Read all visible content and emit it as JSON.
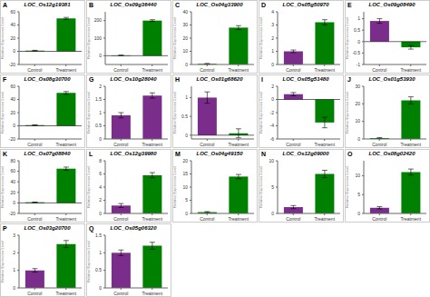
{
  "chart_data": [
    {
      "type": "bar",
      "title": "LOC_Os12g19381",
      "annotations": [
        "A"
      ],
      "categories": [
        "Control",
        "Treatment"
      ],
      "values": [
        1,
        50
      ],
      "errors": [
        0.5,
        1.5
      ],
      "colors": [
        "#008000",
        "#008000"
      ],
      "ylabel": "Relative Expression Level",
      "ylim": [
        -20,
        60
      ],
      "yticks": [
        -20,
        0,
        20,
        40,
        60
      ],
      "grid": false
    },
    {
      "type": "bar",
      "title": "LOC_Os09g36440",
      "annotations": [
        "B"
      ],
      "categories": [
        "Control",
        "Treatment"
      ],
      "values": [
        2,
        200
      ],
      "errors": [
        1,
        5
      ],
      "colors": [
        "#008000",
        "#008000"
      ],
      "ylabel": "Relative Expression Level",
      "ylim": [
        -50,
        250
      ],
      "yticks": [
        0,
        100,
        200
      ],
      "grid": false
    },
    {
      "type": "bar",
      "title": "LOC_Os04g33900",
      "annotations": [
        "C"
      ],
      "categories": [
        "Control",
        "Treatment"
      ],
      "values": [
        0.5,
        28
      ],
      "errors": [
        0.3,
        1.5
      ],
      "colors": [
        "#008000",
        "#008000"
      ],
      "ylabel": "Relative Expression Level",
      "ylim": [
        0,
        40
      ],
      "yticks": [
        0,
        10,
        20,
        30,
        40
      ],
      "grid": false
    },
    {
      "type": "bar",
      "title": "LOC_Os05g50970",
      "annotations": [
        "D"
      ],
      "categories": [
        "Control",
        "Treatment"
      ],
      "values": [
        1.0,
        3.2
      ],
      "errors": [
        0.1,
        0.2
      ],
      "colors": [
        "#7b2d8b",
        "#008000"
      ],
      "ylabel": "Relative Expression Level",
      "ylim": [
        0,
        4
      ],
      "yticks": [
        0,
        1,
        2,
        3,
        4
      ],
      "grid": false
    },
    {
      "type": "bar",
      "title": "LOC_Os09g08490",
      "annotations": [
        "E"
      ],
      "categories": [
        "Control",
        "Treatment"
      ],
      "values": [
        0.9,
        -0.25
      ],
      "errors": [
        0.1,
        0.08
      ],
      "colors": [
        "#7b2d8b",
        "#008000"
      ],
      "ylabel": "Relative Expression Level",
      "ylim": [
        -1,
        1.3
      ],
      "yticks": [
        -1,
        -0.5,
        0,
        0.5,
        1
      ],
      "grid": false
    },
    {
      "type": "bar",
      "title": "LOC_Os08g30700",
      "annotations": [
        "F"
      ],
      "categories": [
        "Control",
        "Treatment"
      ],
      "values": [
        1,
        50
      ],
      "errors": [
        0.5,
        2
      ],
      "colors": [
        "#008000",
        "#008000"
      ],
      "ylabel": "Relative Expression Level",
      "ylim": [
        -20,
        60
      ],
      "yticks": [
        -20,
        0,
        20,
        40,
        60
      ],
      "grid": false
    },
    {
      "type": "bar",
      "title": "LOC_Os10g28040",
      "annotations": [
        "G"
      ],
      "categories": [
        "Control",
        "Treatment"
      ],
      "values": [
        0.9,
        1.65
      ],
      "errors": [
        0.1,
        0.1
      ],
      "colors": [
        "#7b2d8b",
        "#7b2d8b"
      ],
      "ylabel": "Relative Expression Level",
      "ylim": [
        0,
        2
      ],
      "yticks": [
        0,
        0.5,
        1,
        1.5,
        2
      ],
      "grid": false
    },
    {
      "type": "bar",
      "title": "LOC_Os01g68620",
      "annotations": [
        "H"
      ],
      "categories": [
        "Control",
        "Treatment"
      ],
      "values": [
        1.0,
        0.05
      ],
      "errors": [
        0.15,
        0.12
      ],
      "colors": [
        "#7b2d8b",
        "#008000"
      ],
      "ylabel": "Relative Expression Level",
      "ylim": [
        -0.1,
        1.3
      ],
      "yticks": [
        0,
        0.5,
        1
      ],
      "grid": false
    },
    {
      "type": "bar",
      "title": "LOC_Os05g51480",
      "annotations": [
        "I"
      ],
      "categories": [
        "Control",
        "Treatment"
      ],
      "values": [
        0.8,
        -3.5
      ],
      "errors": [
        0.25,
        0.8
      ],
      "colors": [
        "#7b2d8b",
        "#008000"
      ],
      "ylabel": "Relative Expression Level",
      "ylim": [
        -6,
        2
      ],
      "yticks": [
        -6,
        -4,
        -2,
        0,
        2
      ],
      "grid": false
    },
    {
      "type": "bar",
      "title": "LOC_Os01g53930",
      "annotations": [
        "J"
      ],
      "categories": [
        "Control",
        "Treatment"
      ],
      "values": [
        0.5,
        22
      ],
      "errors": [
        0.3,
        2
      ],
      "colors": [
        "#008000",
        "#008000"
      ],
      "ylabel": "Relative Expression Level",
      "ylim": [
        0,
        30
      ],
      "yticks": [
        0,
        10,
        20,
        30
      ],
      "grid": false
    },
    {
      "type": "bar",
      "title": "LOC_Os07g08840",
      "annotations": [
        "K"
      ],
      "categories": [
        "Control",
        "Treatment"
      ],
      "values": [
        1,
        65
      ],
      "errors": [
        0.5,
        3
      ],
      "colors": [
        "#008000",
        "#008000"
      ],
      "ylabel": "Relative Expression Level",
      "ylim": [
        -20,
        80
      ],
      "yticks": [
        -20,
        0,
        20,
        40,
        60,
        80
      ],
      "grid": false
    },
    {
      "type": "bar",
      "title": "LOC_Os12g39980",
      "annotations": [
        "L"
      ],
      "categories": [
        "Control",
        "Treatment"
      ],
      "values": [
        1.2,
        5.8
      ],
      "errors": [
        0.3,
        0.4
      ],
      "colors": [
        "#7b2d8b",
        "#008000"
      ],
      "ylabel": "Relative Expression Level",
      "ylim": [
        0,
        8
      ],
      "yticks": [
        0,
        2,
        4,
        6,
        8
      ],
      "grid": false
    },
    {
      "type": "bar",
      "title": "LOC_Os04g49150",
      "annotations": [
        "M"
      ],
      "categories": [
        "Control",
        "Treatment"
      ],
      "values": [
        0.5,
        14
      ],
      "errors": [
        0.2,
        0.8
      ],
      "colors": [
        "#008000",
        "#008000"
      ],
      "ylabel": "Relative Expression Level",
      "ylim": [
        0,
        20
      ],
      "yticks": [
        0,
        5,
        10,
        15,
        20
      ],
      "grid": false
    },
    {
      "type": "bar",
      "title": "LOC_Os12g09000",
      "annotations": [
        "N"
      ],
      "categories": [
        "Control",
        "Treatment"
      ],
      "values": [
        1.2,
        7.5
      ],
      "errors": [
        0.3,
        0.7
      ],
      "colors": [
        "#7b2d8b",
        "#008000"
      ],
      "ylabel": "Relative Expression Level",
      "ylim": [
        0,
        10
      ],
      "yticks": [
        0,
        5,
        10
      ],
      "grid": false
    },
    {
      "type": "bar",
      "title": "LOC_Os08g02420",
      "annotations": [
        "O"
      ],
      "categories": [
        "Control",
        "Treatment"
      ],
      "values": [
        1.5,
        11
      ],
      "errors": [
        0.3,
        0.8
      ],
      "colors": [
        "#7b2d8b",
        "#008000"
      ],
      "ylabel": "Relative Expression Level",
      "ylim": [
        0,
        14
      ],
      "yticks": [
        0,
        5,
        10
      ],
      "grid": false
    },
    {
      "type": "bar",
      "title": "LOC_Os03g20700",
      "annotations": [
        "P"
      ],
      "categories": [
        "Control",
        "Treatment"
      ],
      "values": [
        1.0,
        2.5
      ],
      "errors": [
        0.1,
        0.2
      ],
      "colors": [
        "#7b2d8b",
        "#008000"
      ],
      "ylabel": "Relative Expression Level",
      "ylim": [
        0,
        3
      ],
      "yticks": [
        0,
        1,
        2,
        3
      ],
      "grid": false
    },
    {
      "type": "bar",
      "title": "LOC_Os05g06320",
      "annotations": [
        "Q"
      ],
      "categories": [
        "Control",
        "Treatment"
      ],
      "values": [
        1.0,
        1.2
      ],
      "errors": [
        0.08,
        0.1
      ],
      "colors": [
        "#7b2d8b",
        "#008000"
      ],
      "ylabel": "Relative Expression Level",
      "ylim": [
        0,
        1.5
      ],
      "yticks": [
        0,
        0.5,
        1,
        1.5
      ],
      "grid": false
    }
  ]
}
